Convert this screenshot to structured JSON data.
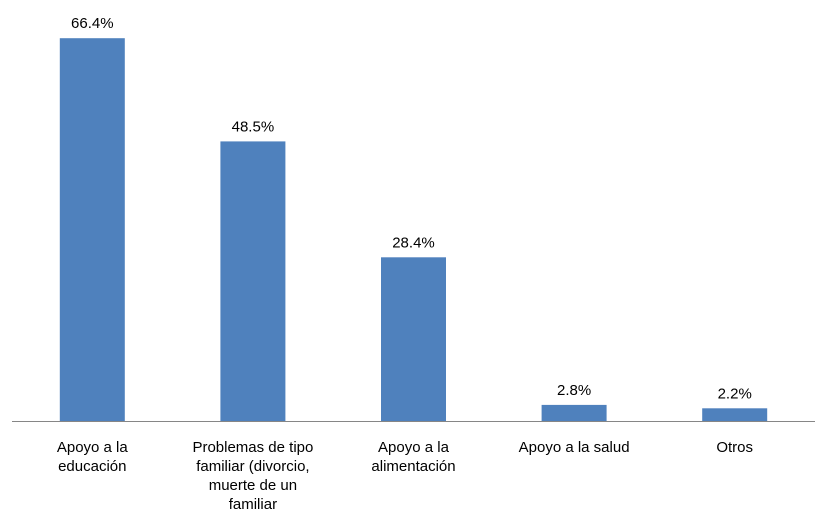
{
  "chart_data": {
    "type": "bar",
    "title": "",
    "xlabel": "",
    "ylabel": "",
    "categories": [
      [
        "Apoyo a la",
        "educación"
      ],
      [
        "Problemas de tipo",
        "familiar (divorcio,",
        "muerte de un",
        "familiar"
      ],
      [
        "Apoyo a la",
        "alimentación"
      ],
      [
        "Apoyo a la salud"
      ],
      [
        "Otros"
      ]
    ],
    "values": [
      66.4,
      48.5,
      28.4,
      2.8,
      2.2
    ],
    "value_labels": [
      "66.4%",
      "48.5%",
      "28.4%",
      "2.8%",
      "2.2%"
    ],
    "bar_color": "#4F81BD",
    "axis_color": "#868686",
    "grid": false,
    "legend": "none"
  }
}
